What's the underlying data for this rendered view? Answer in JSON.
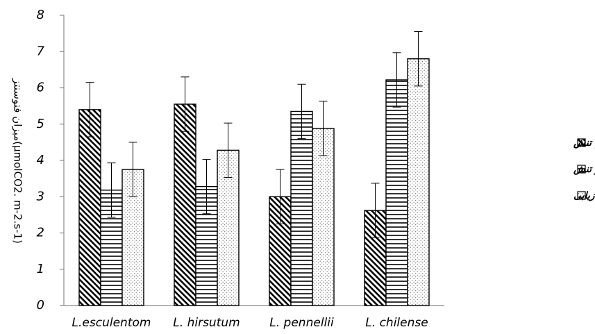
{
  "chart_data": {
    "type": "bar",
    "categories": [
      "L.esculentom",
      "L. hirsutum",
      "L. pennellii",
      "L. chilense"
    ],
    "series": [
      {
        "name": "عدم تنش",
        "values": [
          5.4,
          5.55,
          3.0,
          2.62
        ],
        "errors": [
          0.75,
          0.75,
          0.75,
          0.75
        ],
        "pattern": "diagonal"
      },
      {
        "name": "۲۰ روز بعد از تنش",
        "values": [
          3.18,
          3.28,
          5.35,
          6.22
        ],
        "errors": [
          0.75,
          0.75,
          0.75,
          0.75
        ],
        "pattern": "horizontal"
      },
      {
        "name": "بازیابی",
        "values": [
          3.75,
          4.28,
          4.88,
          6.8
        ],
        "errors": [
          0.75,
          0.75,
          0.75,
          0.75
        ],
        "pattern": "dots"
      }
    ],
    "ylabel": "میزان فتوسنتز(µmolCO2. m-2.s-1)",
    "ylim": [
      0,
      8
    ],
    "yticks": [
      0,
      1,
      2,
      3,
      4,
      5,
      6,
      7,
      8
    ],
    "grid": false,
    "legend_position": "right"
  }
}
